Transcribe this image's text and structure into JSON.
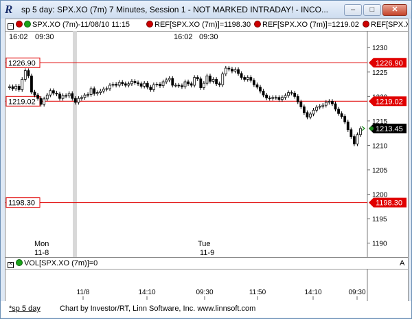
{
  "window": {
    "title": "sp 5 day: SPX.XO (7m) 7 Minutes, Session 1 - NOT MARKED INTRADAY! - INCO...",
    "minimize_label": "–",
    "maximize_label": "□",
    "close_label": "✕"
  },
  "header": {
    "symbol_item": "SPX.XO (7m)-11/08/10 11:15",
    "ref1": "REF[SPX.XO (7m)]=1198.30",
    "ref2": "REF[SPX.XO (7m)]=1219.02",
    "ref3": "REF[SPX.XO"
  },
  "time_labels": {
    "left_time": "16:02",
    "left_time2": "09:30",
    "mid_time": "16:02",
    "mid_time2": "09:30"
  },
  "day_labels": {
    "day1_name": "Mon",
    "day1_date": "11-8",
    "day2_name": "Tue",
    "day2_date": "11-9"
  },
  "volume": {
    "label": "VOL[SPX.XO (7m)]=0",
    "scroll_label": "A"
  },
  "footer": {
    "tab": "*sp 5 day",
    "credit": "Chart by Investor/RT, Linn Software, Inc. www.linnsoft.com"
  },
  "chart_data": {
    "type": "candlestick",
    "ylim": [
      1187,
      1232
    ],
    "y_ticks": [
      1190,
      1195,
      1200,
      1205,
      1210,
      1215,
      1220,
      1225,
      1230
    ],
    "x_tick_labels": [
      "11/8",
      "14:10",
      "09:30",
      "11:50",
      "14:10",
      "09:30"
    ],
    "reference_lines": [
      {
        "label": "1226.90",
        "value": 1226.9
      },
      {
        "label": "1219.02",
        "value": 1219.02
      },
      {
        "label": "1198.30",
        "value": 1198.3
      }
    ],
    "last_price": {
      "label": "1213.45",
      "value": 1213.45
    },
    "colors": {
      "ref_line": "#e00000",
      "last_price": "#1a8a1a",
      "candle": "#000000",
      "session_shade": "#d8d8d8"
    },
    "closes": [
      1222.0,
      1221.6,
      1222.1,
      1221.4,
      1223.5,
      1225.3,
      1224.2,
      1220.9,
      1220.3,
      1219.6,
      1218.4,
      1219.5,
      1220.3,
      1221.2,
      1220.7,
      1220.5,
      1219.6,
      1220.2,
      1220.1,
      1220.6,
      1219.6,
      1218.8,
      1219.6,
      1219.8,
      1220.3,
      1220.4,
      1221.6,
      1220.6,
      1220.8,
      1221.1,
      1221.5,
      1221.6,
      1222.3,
      1222.5,
      1222.3,
      1222.9,
      1222.6,
      1222.3,
      1222.6,
      1223.1,
      1222.8,
      1222.6,
      1222.1,
      1222.7,
      1221.9,
      1221.4,
      1222.4,
      1222.5,
      1222.2,
      1223.0,
      1223.4,
      1223.7,
      1222.3,
      1222.3,
      1222.2,
      1222.0,
      1223.0,
      1222.6,
      1222.3,
      1223.9,
      1223.6,
      1221.8,
      1222.7,
      1224.2,
      1223.1,
      1223.5,
      1222.6,
      1222.4,
      1224.6,
      1225.8,
      1225.6,
      1225.2,
      1225.5,
      1224.7,
      1223.9,
      1223.5,
      1223.9,
      1223.3,
      1222.4,
      1221.9,
      1221.1,
      1220.3,
      1219.7,
      1219.6,
      1219.8,
      1219.8,
      1219.4,
      1219.8,
      1220.2,
      1220.8,
      1220.7,
      1220.0,
      1218.9,
      1217.9,
      1216.7,
      1215.8,
      1216.4,
      1217.2,
      1217.8,
      1218.0,
      1218.2,
      1218.8,
      1219.0,
      1218.5,
      1217.4,
      1216.5,
      1215.9,
      1214.8,
      1213.2,
      1211.8,
      1210.3,
      1212.2,
      1213.45
    ]
  }
}
